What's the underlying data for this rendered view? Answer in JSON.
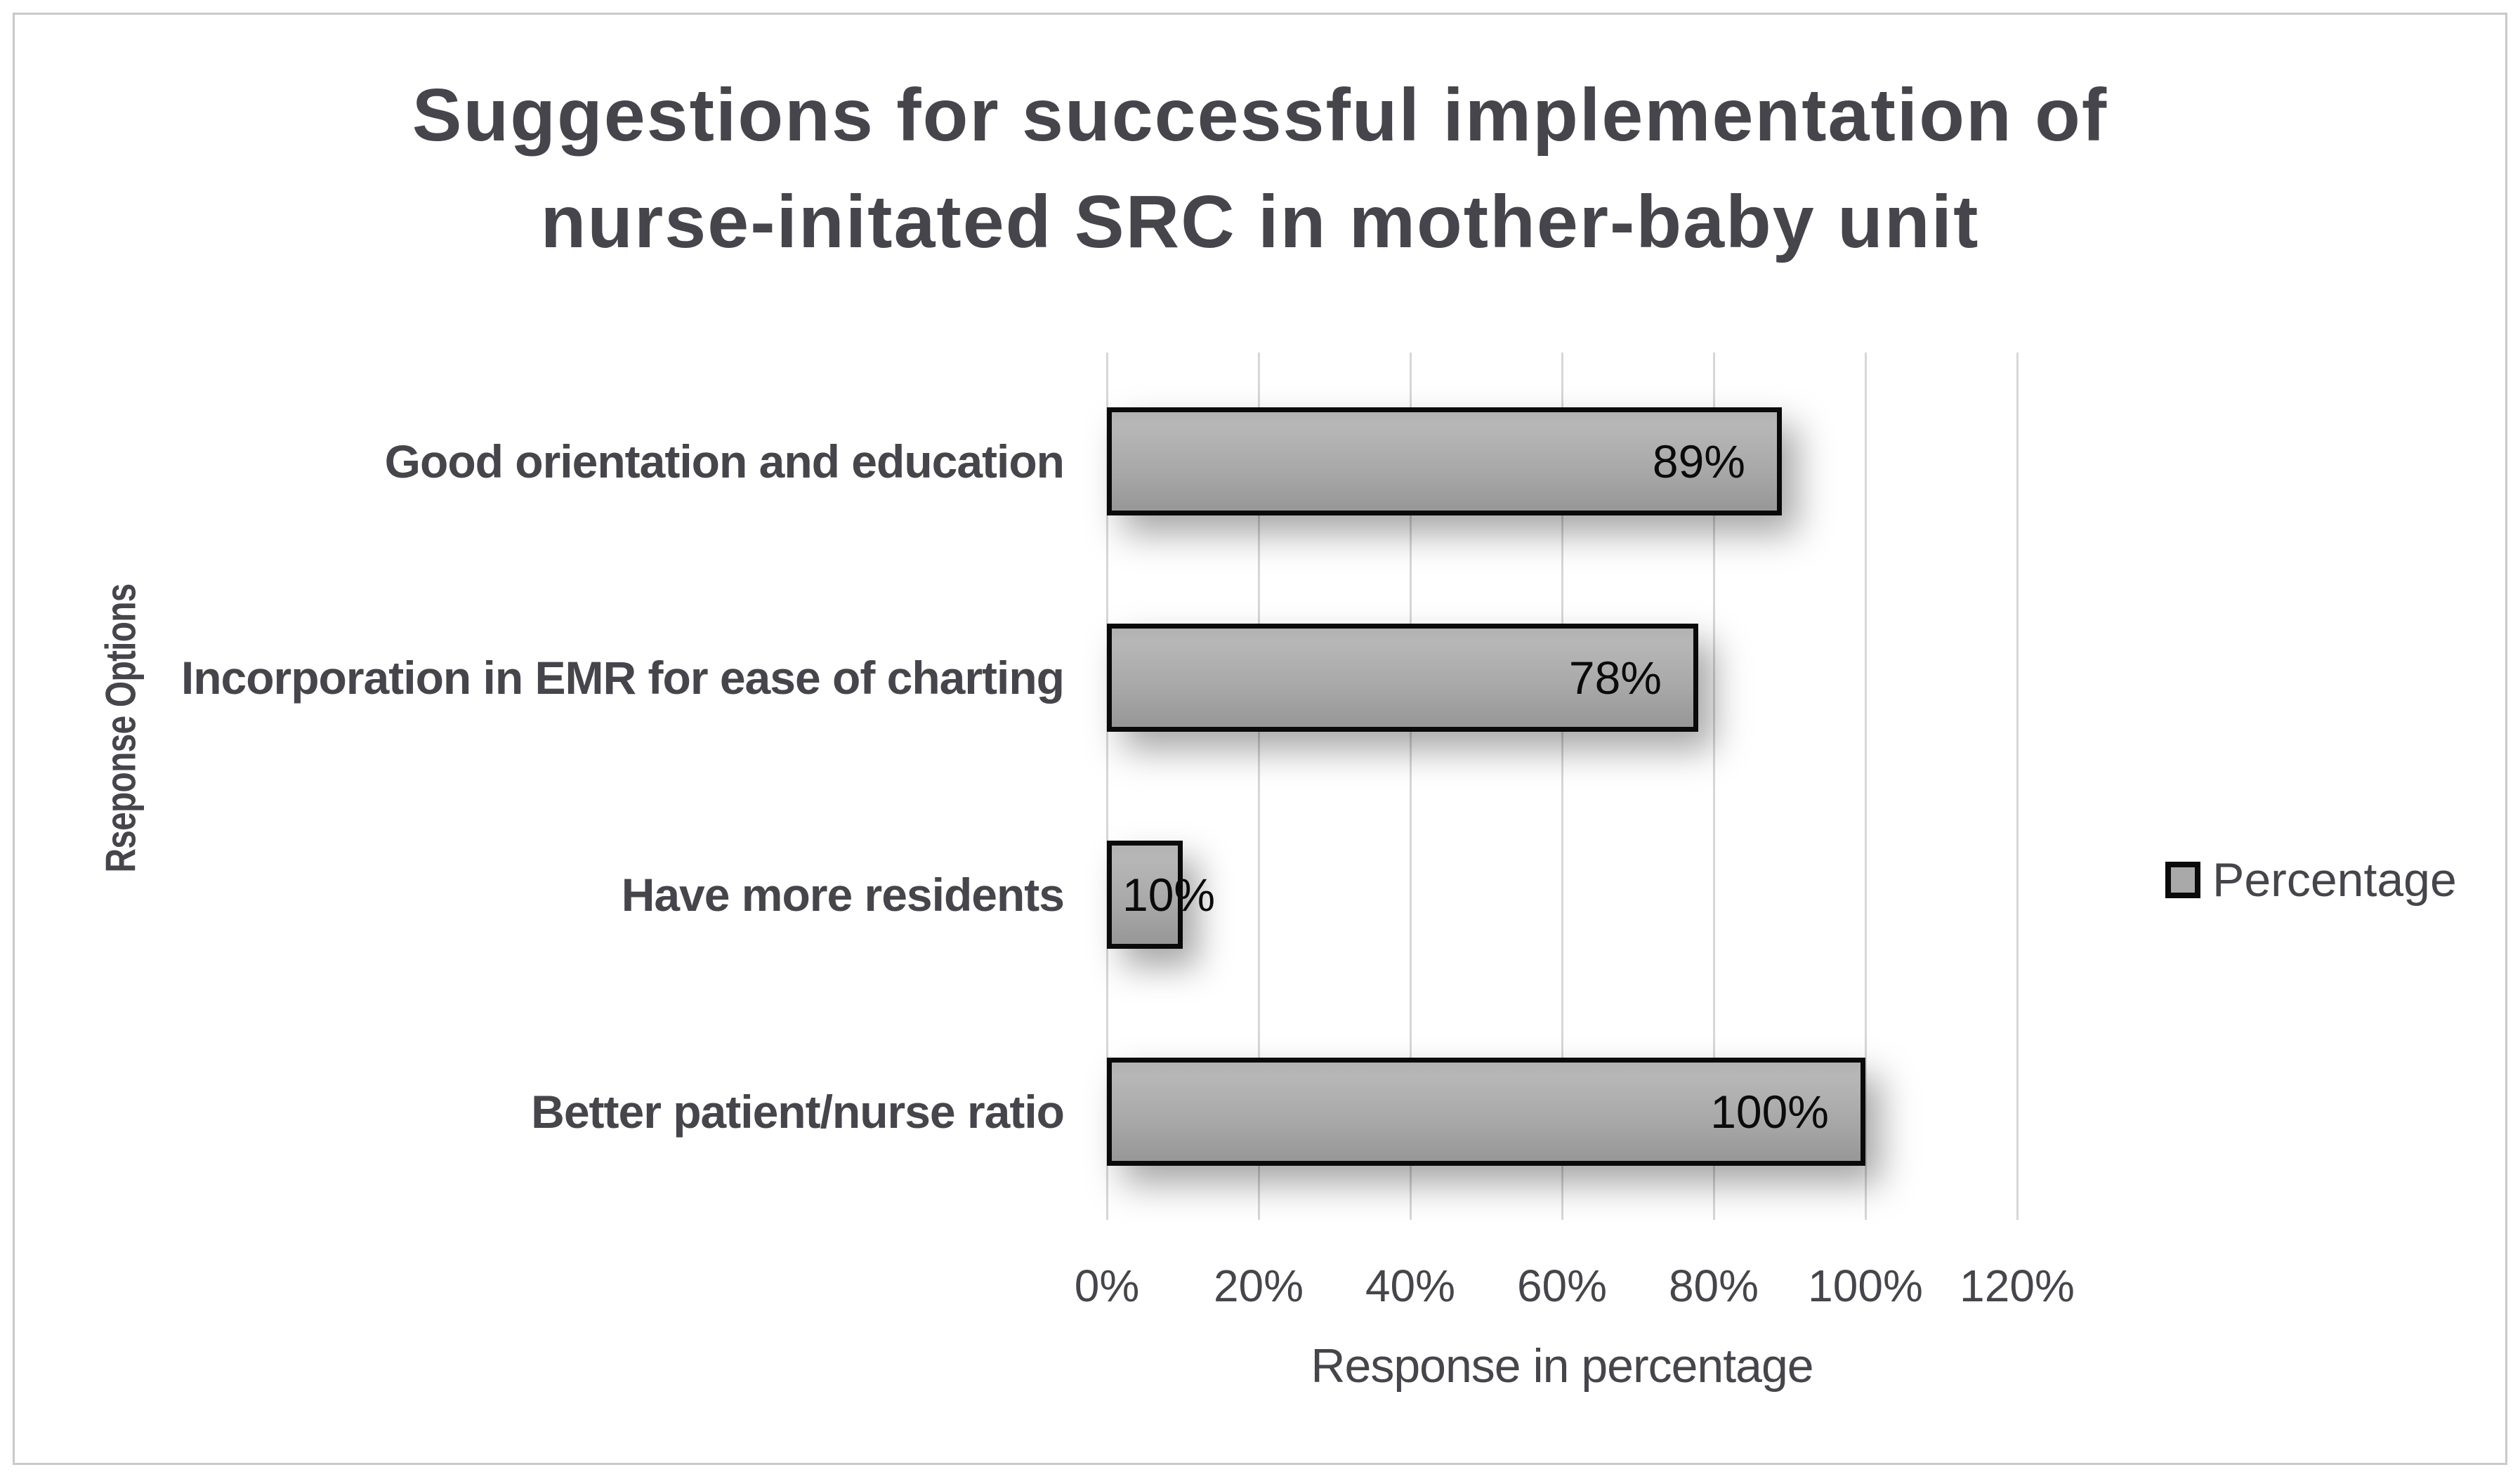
{
  "title": {
    "line1": "Suggestions for successful implementation of",
    "line2": "nurse-initated SRC in mother-baby unit"
  },
  "y_axis": {
    "title": "Rseponse Options"
  },
  "x_axis": {
    "title": "Response in percentage",
    "ticks": [
      "0%",
      "20%",
      "40%",
      "60%",
      "80%",
      "100%",
      "120%"
    ]
  },
  "legend": {
    "label": "Percentage"
  },
  "chart_data": {
    "type": "bar",
    "orientation": "horizontal",
    "title": "Suggestions for successful implementation of nurse-initated SRC in mother-baby unit",
    "categories": [
      "Good orientation and education",
      "Incorporation in EMR for ease of charting",
      "Have more residents",
      "Better patient/nurse ratio"
    ],
    "series": [
      {
        "name": "Percentage",
        "values": [
          89,
          78,
          10,
          100
        ]
      }
    ],
    "data_labels": [
      "89%",
      "78%",
      "10%",
      "100%"
    ],
    "xlabel": "Response in percentage",
    "ylabel": "Rseponse Options",
    "xlim": [
      0,
      120
    ],
    "tick_step": 20,
    "grid": true,
    "legend_position": "right",
    "bar_color": "#a9a9a9",
    "bar_border_color": "#0a0a0a",
    "gridline_color": "#d7d7d7",
    "background_color": "#ffffff"
  }
}
